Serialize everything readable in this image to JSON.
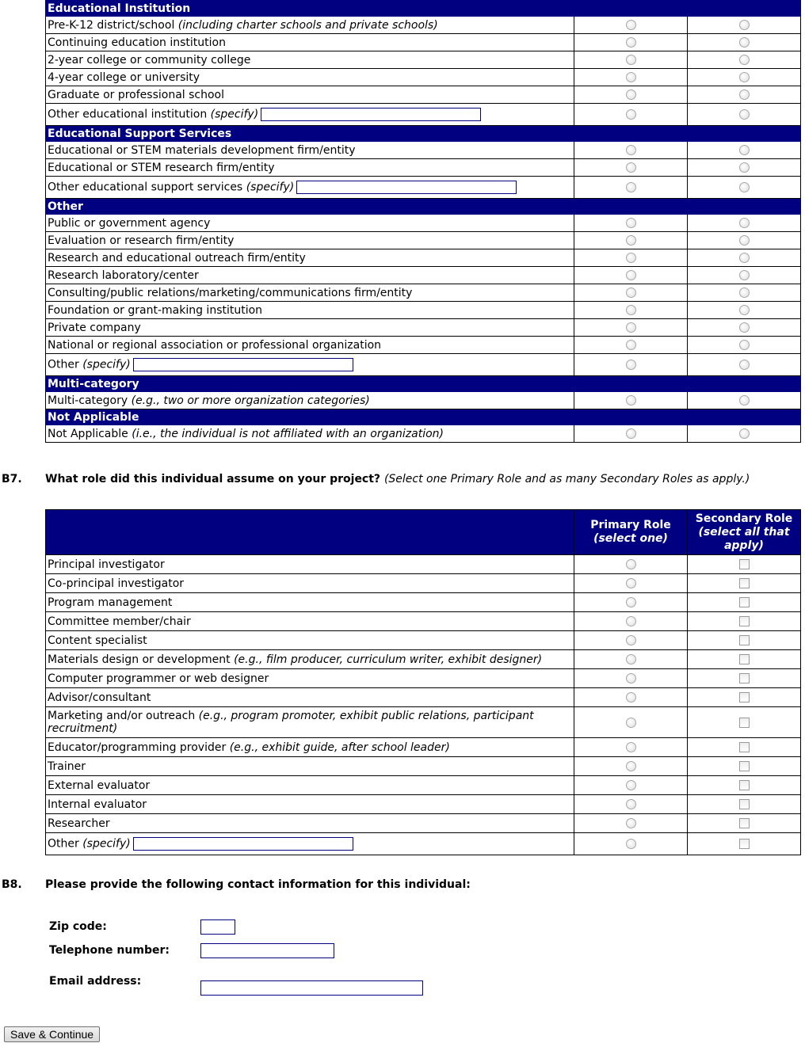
{
  "org_table": {
    "sections": [
      {
        "title": "Educational Institution",
        "rows": [
          {
            "label": "Pre-K-12 district/school",
            "note": "(including charter schools and private schools)"
          },
          {
            "label": "Continuing education institution"
          },
          {
            "label": "2-year college or community college"
          },
          {
            "label": "4-year college or university"
          },
          {
            "label": "Graduate or professional school"
          },
          {
            "label": "Other educational institution",
            "note": "(specify)",
            "specify": true
          }
        ]
      },
      {
        "title": "Educational Support Services",
        "rows": [
          {
            "label": "Educational or STEM materials development firm/entity"
          },
          {
            "label": "Educational or STEM research firm/entity"
          },
          {
            "label": "Other educational support services",
            "note": "(specify)",
            "specify": true
          }
        ]
      },
      {
        "title": "Other",
        "rows": [
          {
            "label": "Public or government agency"
          },
          {
            "label": "Evaluation or research firm/entity"
          },
          {
            "label": "Research and educational outreach firm/entity"
          },
          {
            "label": "Research laboratory/center"
          },
          {
            "label": "Consulting/public relations/marketing/communications firm/entity"
          },
          {
            "label": "Foundation or grant-making institution"
          },
          {
            "label": "Private company"
          },
          {
            "label": "National or regional association or professional organization"
          },
          {
            "label": "Other",
            "note": "(specify)",
            "specify": true
          }
        ]
      },
      {
        "title": "Multi-category",
        "rows": [
          {
            "label": "Multi-category",
            "note": "(e.g., two or more organization categories)"
          }
        ]
      },
      {
        "title": "Not Applicable",
        "rows": [
          {
            "label": "Not Applicable",
            "note": "(i.e., the individual is not affiliated with an organization)"
          }
        ]
      }
    ]
  },
  "b7": {
    "number": "B7.",
    "question": "What role did this individual assume on your project?",
    "hint": "(Select one Primary Role and as many Secondary Roles as apply.)",
    "primary_header": "Primary Role",
    "primary_sub": "(select one)",
    "secondary_header": "Secondary Role",
    "secondary_sub": "(select all that apply)",
    "rows": [
      {
        "label": "Principal investigator"
      },
      {
        "label": "Co-principal investigator"
      },
      {
        "label": "Program management"
      },
      {
        "label": "Committee member/chair"
      },
      {
        "label": "Content specialist"
      },
      {
        "label": "Materials design or development",
        "note": "(e.g., film producer, curriculum writer, exhibit designer)"
      },
      {
        "label": "Computer programmer or web designer"
      },
      {
        "label": "Advisor/consultant"
      },
      {
        "label": "Marketing and/or outreach",
        "note": "(e.g., program promoter, exhibit public relations, participant recruitment)",
        "tall": true
      },
      {
        "label": "Educator/programming provider",
        "note": "(e.g., exhibit guide, after school leader)"
      },
      {
        "label": "Trainer"
      },
      {
        "label": "External evaluator"
      },
      {
        "label": "Internal evaluator"
      },
      {
        "label": "Researcher"
      },
      {
        "label": "Other",
        "note": "(specify)",
        "specify": true
      }
    ]
  },
  "b8": {
    "number": "B8.",
    "question": "Please provide the following contact information for this individual:",
    "zip_label": "Zip code:",
    "zip_value": "",
    "phone_label": "Telephone number:",
    "phone_value": "",
    "email_label": "Email address:",
    "email_value": ""
  },
  "save_button": "Save & Continue",
  "colors": {
    "header_bg": "#000080",
    "input_border": "#000080"
  }
}
